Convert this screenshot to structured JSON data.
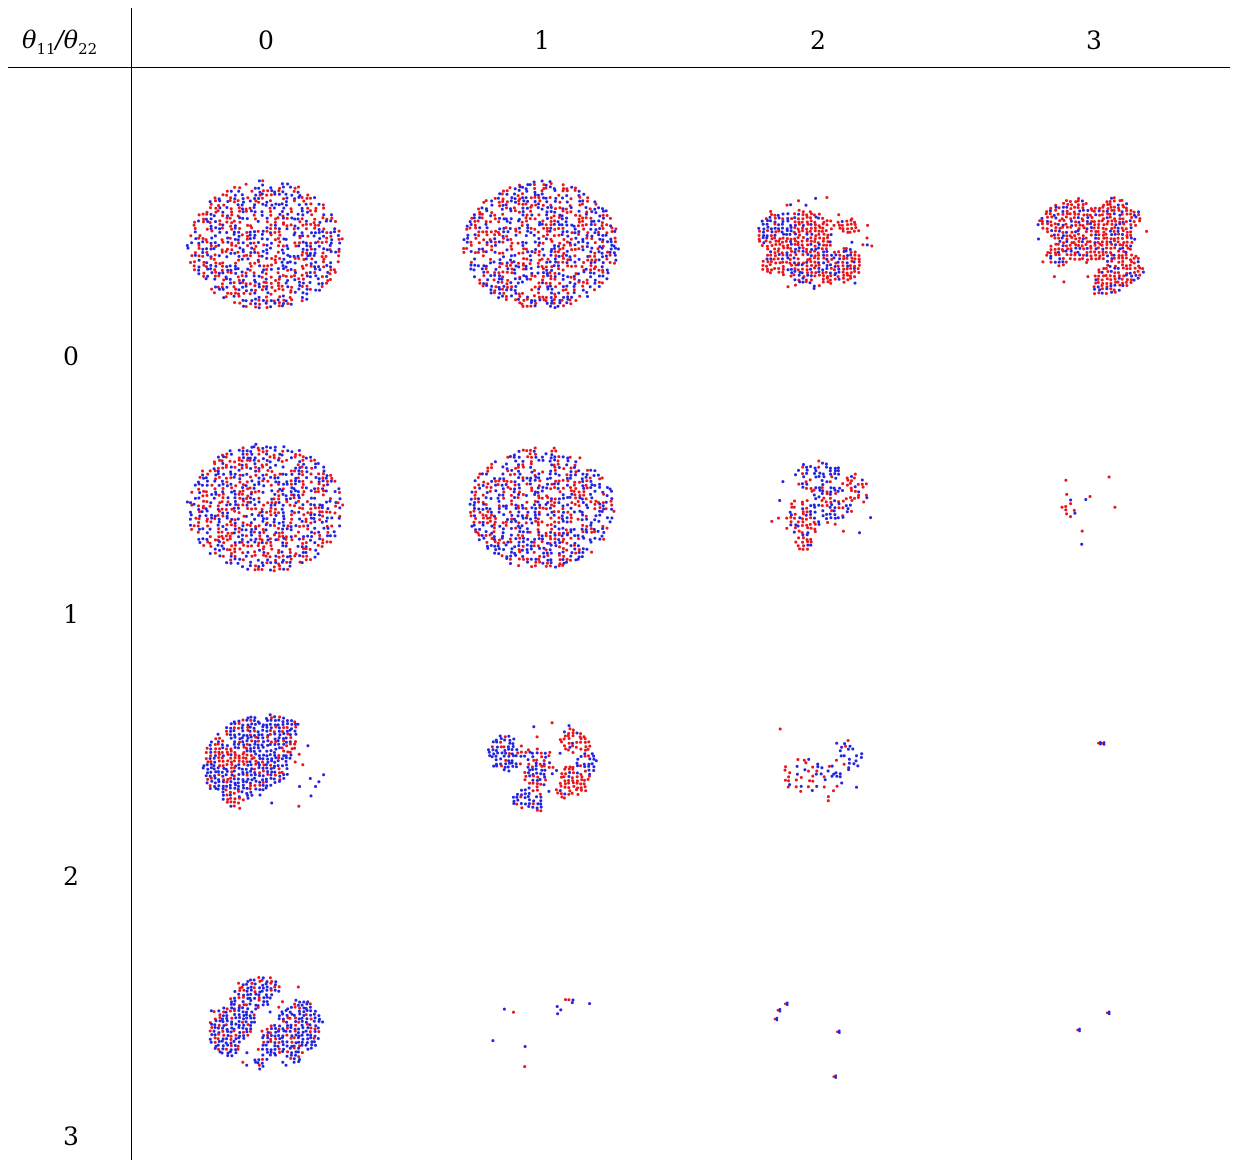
{
  "table": {
    "corner_label": {
      "theta1": "θ",
      "sub1": "11",
      "sep": "/",
      "theta2": "θ",
      "sub2": "22"
    },
    "column_headers": [
      "0",
      "1",
      "2",
      "3"
    ],
    "row_headers": [
      "0",
      "1",
      "2",
      "3"
    ],
    "legend_colors": {
      "species_a": "#e8161b",
      "species_b": "#2424e0"
    },
    "cells": [
      [
        {
          "density": 0.62,
          "red_fraction": 0.5,
          "radius": 78,
          "pattern": "dense-labyrinth"
        },
        {
          "density": 0.62,
          "red_fraction": 0.5,
          "radius": 78,
          "pattern": "dense-labyrinth"
        },
        {
          "density": 0.4,
          "red_fraction": 0.8,
          "radius": 62,
          "pattern": "clusters"
        },
        {
          "density": 0.45,
          "red_fraction": 0.95,
          "radius": 62,
          "pattern": "clusters"
        }
      ],
      [
        {
          "density": 0.62,
          "red_fraction": 0.5,
          "radius": 78,
          "pattern": "dense-labyrinth"
        },
        {
          "density": 0.6,
          "red_fraction": 0.45,
          "radius": 74,
          "pattern": "dense-labyrinth"
        },
        {
          "density": 0.22,
          "red_fraction": 0.55,
          "radius": 58,
          "pattern": "clusters"
        },
        {
          "density": 0.05,
          "red_fraction": 0.9,
          "radius": 55,
          "pattern": "sparse"
        }
      ],
      [
        {
          "density": 0.45,
          "red_fraction": 0.2,
          "radius": 62,
          "pattern": "clusters"
        },
        {
          "density": 0.28,
          "red_fraction": 0.35,
          "radius": 56,
          "pattern": "clusters"
        },
        {
          "density": 0.12,
          "red_fraction": 0.5,
          "radius": 60,
          "pattern": "sparse-clusters"
        },
        {
          "density": 0.004,
          "red_fraction": 0.5,
          "radius": 30,
          "pattern": "isolated"
        }
      ],
      [
        {
          "density": 0.45,
          "red_fraction": 0.05,
          "radius": 58,
          "pattern": "clusters"
        },
        {
          "density": 0.06,
          "red_fraction": 0.1,
          "radius": 60,
          "pattern": "sparse"
        },
        {
          "density": 0.006,
          "red_fraction": 0.5,
          "radius": 55,
          "pattern": "isolated"
        },
        {
          "density": 0.004,
          "red_fraction": 0.5,
          "radius": 20,
          "pattern": "isolated"
        }
      ]
    ]
  }
}
